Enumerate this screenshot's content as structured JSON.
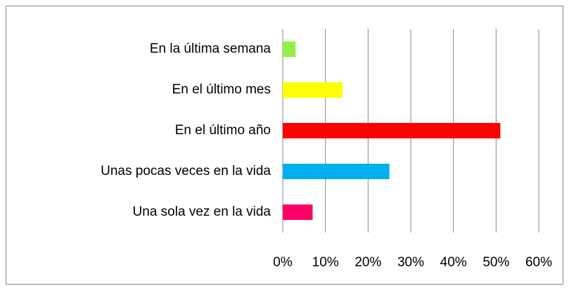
{
  "chart_data": {
    "type": "barh",
    "categories": [
      "En la última semana",
      "En el último mes",
      "En el último año",
      "Unas pocas veces en la vida",
      "Una sola vez en la vida"
    ],
    "values": [
      3,
      14,
      51,
      25,
      7
    ],
    "colors": [
      "#92f042",
      "#ffff00",
      "#ff0000",
      "#00b0f0",
      "#ff0066"
    ],
    "xlim": [
      0,
      60
    ],
    "xticks": [
      {
        "value": 0,
        "label": "0%"
      },
      {
        "value": 10,
        "label": "10%"
      },
      {
        "value": 20,
        "label": "20%"
      },
      {
        "value": 30,
        "label": "30%"
      },
      {
        "value": 40,
        "label": "40%"
      },
      {
        "value": 50,
        "label": "50%"
      },
      {
        "value": 60,
        "label": "60%"
      }
    ],
    "grid": true
  }
}
